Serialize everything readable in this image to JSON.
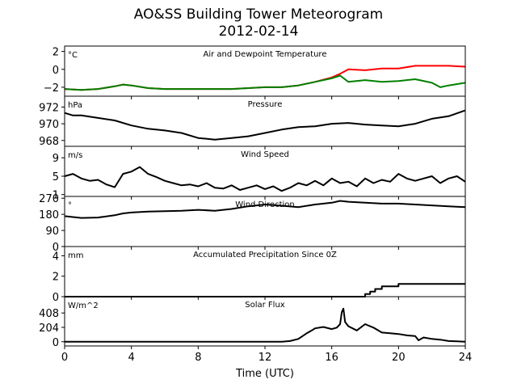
{
  "title": "AO&SS Building Tower Meteorogram",
  "subtitle": "2012-02-14",
  "xlabel": "Time (UTC)",
  "xticks": [
    0,
    4,
    8,
    12,
    16,
    20,
    24
  ],
  "xlim": [
    0,
    24
  ],
  "chart_data": [
    {
      "type": "line",
      "title": "Air and Dewpoint Temperature",
      "unit": "°C",
      "ylim": [
        -3.0,
        2.6
      ],
      "yticks": [
        2,
        0,
        -2
      ],
      "ytick_labels": [
        "2",
        "0",
        "−2"
      ],
      "series": [
        {
          "color": "#ff0000",
          "x": [
            0,
            1,
            2,
            3,
            3.5,
            4,
            5,
            6,
            7,
            8,
            9,
            10,
            11,
            12,
            13,
            14,
            15,
            16,
            16.5,
            17,
            18,
            19,
            20,
            21,
            22,
            23,
            24
          ],
          "y": [
            -2.2,
            -2.3,
            -2.2,
            -1.9,
            -1.7,
            -1.8,
            -2.1,
            -2.2,
            -2.2,
            -2.2,
            -2.2,
            -2.2,
            -2.1,
            -2.0,
            -2.0,
            -1.8,
            -1.4,
            -0.9,
            -0.5,
            0.0,
            -0.1,
            0.1,
            0.1,
            0.4,
            0.4,
            0.4,
            0.3
          ]
        },
        {
          "color": "#008000",
          "x": [
            0,
            1,
            2,
            3,
            3.5,
            4,
            5,
            6,
            7,
            8,
            9,
            10,
            11,
            12,
            13,
            14,
            15,
            16,
            16.5,
            17,
            18,
            19,
            20,
            21,
            22,
            22.5,
            23,
            24
          ],
          "y": [
            -2.2,
            -2.3,
            -2.2,
            -1.9,
            -1.7,
            -1.8,
            -2.1,
            -2.2,
            -2.2,
            -2.2,
            -2.2,
            -2.2,
            -2.1,
            -2.0,
            -2.0,
            -1.8,
            -1.4,
            -1.0,
            -0.7,
            -1.4,
            -1.2,
            -1.4,
            -1.3,
            -1.1,
            -1.5,
            -2.0,
            -1.8,
            -1.5
          ]
        }
      ]
    },
    {
      "type": "line",
      "title": "Pressure",
      "unit": "hPa",
      "ylim": [
        967.3,
        973.3
      ],
      "yticks": [
        972,
        970,
        968
      ],
      "ytick_labels": [
        "972",
        "970",
        "968"
      ],
      "series": [
        {
          "color": "#000000",
          "x": [
            0,
            0.5,
            1,
            2,
            3,
            4,
            5,
            6,
            7,
            8,
            9,
            10,
            11,
            12,
            13,
            14,
            15,
            16,
            17,
            18,
            19,
            20,
            21,
            22,
            23,
            24
          ],
          "y": [
            971.3,
            971.0,
            971.0,
            970.7,
            970.4,
            969.8,
            969.4,
            969.2,
            968.9,
            968.3,
            968.1,
            968.3,
            968.5,
            968.9,
            969.3,
            969.6,
            969.7,
            970.0,
            970.1,
            969.9,
            969.8,
            969.7,
            970.0,
            970.6,
            970.9,
            971.6
          ]
        }
      ]
    },
    {
      "type": "line",
      "title": "Wind Speed",
      "unit": "m/s",
      "ylim": [
        0.6,
        11.5
      ],
      "yticks": [
        9,
        5,
        1
      ],
      "ytick_labels": [
        "9",
        "5",
        "1"
      ],
      "series": [
        {
          "color": "#000000",
          "x": [
            0,
            0.5,
            1,
            1.5,
            2,
            2.5,
            3,
            3.5,
            4,
            4.5,
            5,
            5.5,
            6,
            6.5,
            7,
            7.5,
            8,
            8.5,
            9,
            9.5,
            10,
            10.5,
            11,
            11.5,
            12,
            12.5,
            13,
            13.5,
            14,
            14.5,
            15,
            15.5,
            16,
            16.5,
            17,
            17.5,
            18,
            18.5,
            19,
            19.5,
            20,
            20.5,
            21,
            21.5,
            22,
            22.5,
            23,
            23.5,
            24
          ],
          "y": [
            5.0,
            5.5,
            4.5,
            4.0,
            4.2,
            3.2,
            2.6,
            5.5,
            6.0,
            7.0,
            5.5,
            4.8,
            4.0,
            3.5,
            3.0,
            3.2,
            2.8,
            3.5,
            2.5,
            2.3,
            3.0,
            2.0,
            2.5,
            3.0,
            2.2,
            2.8,
            1.8,
            2.5,
            3.5,
            3.0,
            4.0,
            3.0,
            4.5,
            3.5,
            3.8,
            2.8,
            4.5,
            3.5,
            4.2,
            3.8,
            5.5,
            4.5,
            4.0,
            4.5,
            5.0,
            3.5,
            4.5,
            5.0,
            3.8
          ]
        }
      ]
    },
    {
      "type": "line",
      "title": "Wind Direction",
      "unit": "°",
      "ylim": [
        0,
        280
      ],
      "yticks": [
        270,
        180,
        90,
        0
      ],
      "ytick_labels": [
        "270",
        "180",
        "90",
        "0"
      ],
      "series": [
        {
          "color": "#000000",
          "x": [
            0,
            1,
            2,
            3,
            3.5,
            4,
            5,
            6,
            7,
            8,
            9,
            10,
            11,
            12,
            13,
            14,
            15,
            16,
            16.5,
            17,
            18,
            19,
            20,
            21,
            22,
            23,
            24
          ],
          "y": [
            170,
            160,
            162,
            175,
            185,
            190,
            195,
            198,
            200,
            205,
            200,
            210,
            225,
            235,
            228,
            220,
            235,
            245,
            255,
            250,
            245,
            240,
            240,
            235,
            230,
            225,
            220
          ]
        }
      ]
    },
    {
      "type": "line",
      "title": "Accumulated Precipitation Since 0Z",
      "unit": "mm",
      "ylim": [
        0,
        4.9
      ],
      "yticks": [
        4,
        2,
        0
      ],
      "ytick_labels": [
        "4",
        "2",
        "0"
      ],
      "series": [
        {
          "color": "#000000",
          "x": [
            0,
            18.0,
            18.0,
            18.3,
            18.3,
            18.6,
            18.6,
            19.0,
            19.0,
            20.0,
            20.0,
            21.0,
            21.0,
            24
          ],
          "y": [
            0,
            0,
            0.25,
            0.25,
            0.5,
            0.5,
            0.75,
            0.75,
            1.0,
            1.0,
            1.25,
            1.25,
            1.25,
            1.25
          ]
        }
      ]
    },
    {
      "type": "line",
      "title": "Solar Flux",
      "unit": "W/m^2",
      "ylim": [
        -60,
        640
      ],
      "yticks": [
        408,
        204,
        0
      ],
      "ytick_labels": [
        "408",
        "204",
        "0"
      ],
      "series": [
        {
          "color": "#000000",
          "x": [
            0,
            13.0,
            13.5,
            14.0,
            14.5,
            14.8,
            15.0,
            15.5,
            16.0,
            16.3,
            16.5,
            16.6,
            16.7,
            16.8,
            17.0,
            17.5,
            18.0,
            18.5,
            19.0,
            19.5,
            20.0,
            20.5,
            21.0,
            21.2,
            21.5,
            22.0,
            22.5,
            23.0,
            23.5,
            24
          ],
          "y": [
            0,
            0,
            10,
            40,
            120,
            160,
            190,
            210,
            180,
            200,
            250,
            420,
            470,
            280,
            220,
            160,
            250,
            200,
            130,
            120,
            110,
            90,
            80,
            20,
            60,
            40,
            30,
            10,
            5,
            0
          ]
        }
      ]
    }
  ]
}
